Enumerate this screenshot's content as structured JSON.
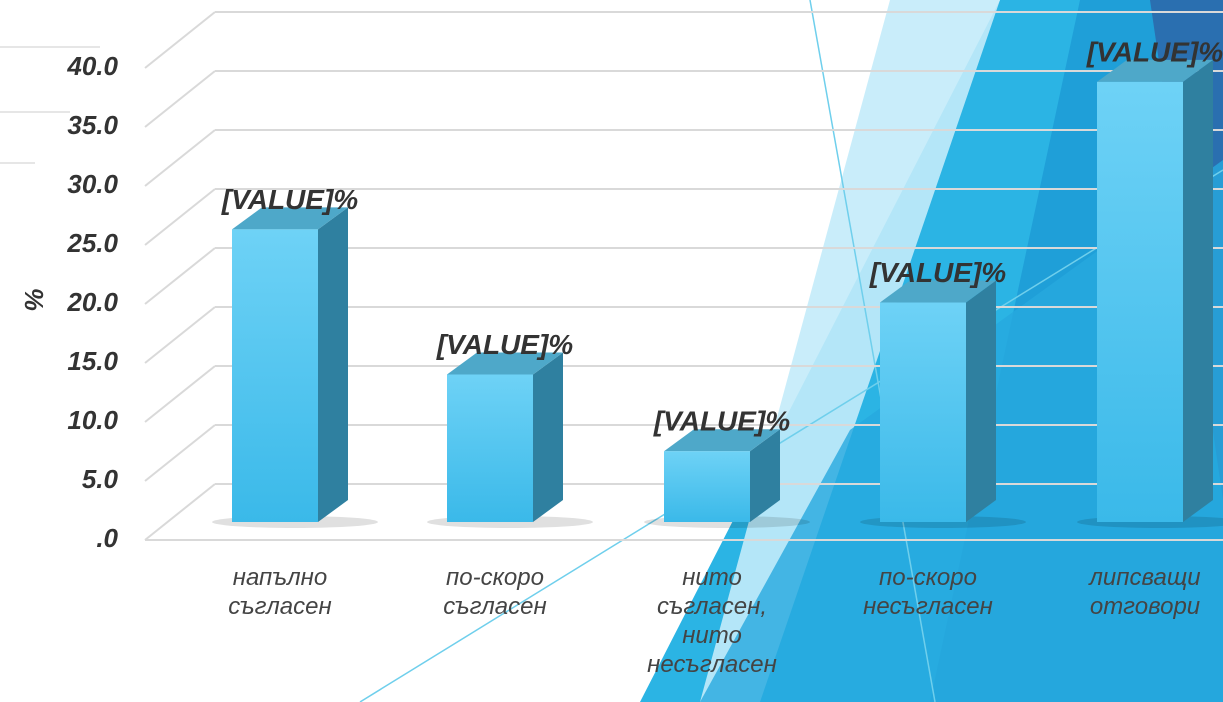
{
  "chart_data": {
    "type": "bar3d",
    "y_label": "%",
    "categories": [
      "напълно съгласен",
      "по-скоро съгласен",
      "нито съгласен, нито несъгласен",
      "по-скоро несъгласен",
      "липсващи отговори"
    ],
    "values": [
      24.8,
      12.5,
      6.0,
      18.6,
      37.3
    ],
    "value_labels": [
      "[VALUE]%",
      "[VALUE]%",
      "[VALUE]%",
      "[VALUE]%",
      "[VALUE]%"
    ],
    "color": "#55c6f0",
    "ylim": [
      0,
      40
    ],
    "yticks": [
      {
        "value": 0,
        "label": ".0"
      },
      {
        "value": 5,
        "label": "5.0"
      },
      {
        "value": 10,
        "label": "10.0"
      },
      {
        "value": 15,
        "label": "15.0"
      },
      {
        "value": 20,
        "label": "20.0"
      },
      {
        "value": 25,
        "label": "25.0"
      },
      {
        "value": 30,
        "label": "30.0"
      },
      {
        "value": 35,
        "label": "35.0"
      },
      {
        "value": 40,
        "label": "40.0"
      }
    ],
    "grid": true
  }
}
